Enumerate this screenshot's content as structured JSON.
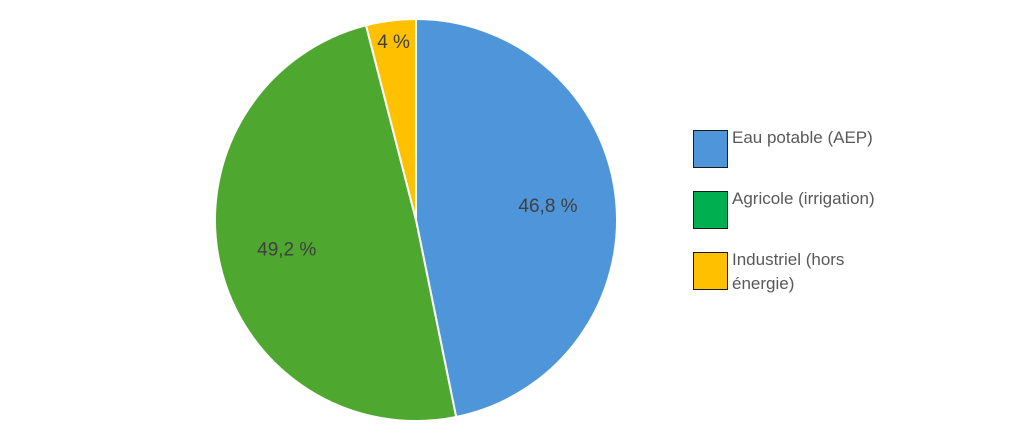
{
  "chart_data": {
    "type": "pie",
    "title": "",
    "slices": [
      {
        "label": "Eau potable (AEP)",
        "value": 46.8,
        "display": "46,8 %",
        "color": "#4E95D9"
      },
      {
        "label": "Agricole (irrigation)",
        "value": 49.2,
        "display": "49,2 %",
        "color": "#4EA72E"
      },
      {
        "label": "Industriel (hors énergie)",
        "value": 4.0,
        "display": "4 %",
        "color": "#FFC000"
      }
    ],
    "start_angle_deg": 0,
    "direction": "clockwise",
    "legend": {
      "position": "right",
      "entries": [
        {
          "label": "Eau potable (AEP)",
          "color": "#4E95D9"
        },
        {
          "label": "Agricole (irrigation)",
          "color": "#00B050"
        },
        {
          "label": "Industriel (hors énergie)",
          "color": "#FFC000"
        }
      ]
    }
  }
}
